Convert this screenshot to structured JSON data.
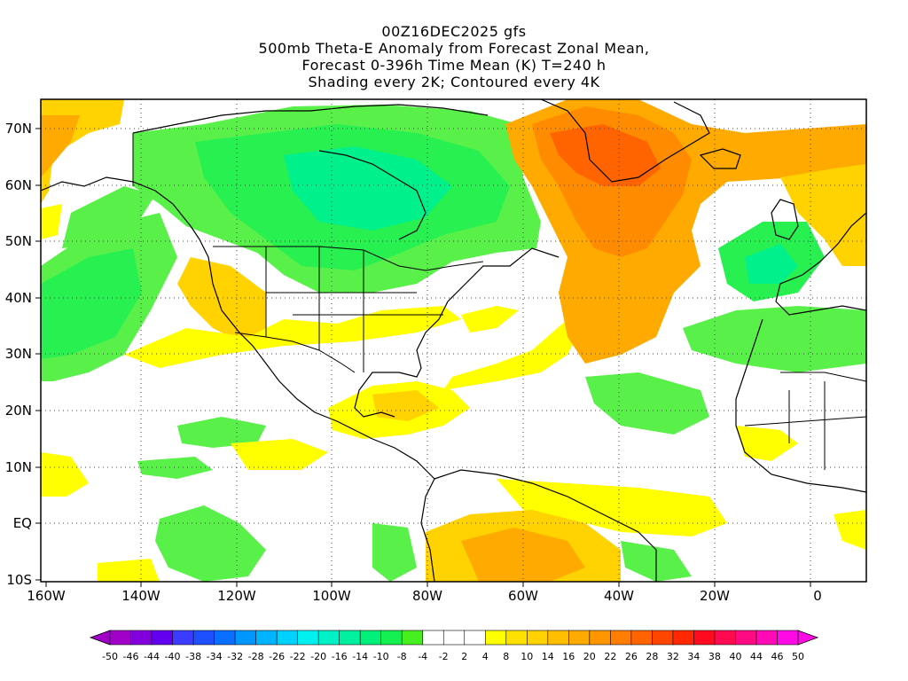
{
  "header": {
    "run": "00Z16DEC2025 gfs",
    "line2": "500mb Theta-E Anomaly from Forecast Zonal Mean,",
    "line3": "Forecast 0-396h Time Mean (K) T=240 h",
    "line4": "Shading every 2K; Contoured every 4K"
  },
  "axes": {
    "lat_labels": [
      "70N",
      "60N",
      "50N",
      "40N",
      "30N",
      "20N",
      "10N",
      "EQ",
      "10S"
    ],
    "lon_labels": [
      "160W",
      "140W",
      "120W",
      "100W",
      "80W",
      "60W",
      "40W",
      "20W",
      "0"
    ]
  },
  "colorbar": {
    "labels": [
      "-50",
      "-46",
      "-44",
      "-40",
      "-38",
      "-34",
      "-32",
      "-28",
      "-26",
      "-22",
      "-20",
      "-16",
      "-14",
      "-10",
      "-8",
      "-4",
      "-2",
      "2",
      "4",
      "8",
      "10",
      "14",
      "16",
      "20",
      "22",
      "26",
      "28",
      "32",
      "34",
      "38",
      "40",
      "44",
      "46",
      "50"
    ],
    "colors": [
      "#a000c8",
      "#8200dc",
      "#6400f0",
      "#3c3cff",
      "#1e50ff",
      "#0a6eff",
      "#0096ff",
      "#00b4ff",
      "#00d2ff",
      "#00f0f0",
      "#00f0c8",
      "#00f0a0",
      "#00f07a",
      "#14f050",
      "#46f01e",
      "#ffffff",
      "#ffffff",
      "#ffffff",
      "#ffff00",
      "#ffe100",
      "#ffd200",
      "#ffbe00",
      "#ffaa00",
      "#ff9600",
      "#ff7d00",
      "#ff6400",
      "#ff4600",
      "#ff2800",
      "#ff0a1e",
      "#ff0a50",
      "#ff0a82",
      "#ff0ab4",
      "#ff0ae6"
    ]
  },
  "palette": {
    "green": "#5af04a",
    "green_mid": "#28f050",
    "teal": "#00f08c",
    "yellow": "#ffff00",
    "yellow_orange": "#ffd200",
    "orange": "#ffaa00",
    "dark_orange": "#ff8c00",
    "red_orange": "#ff6400"
  }
}
